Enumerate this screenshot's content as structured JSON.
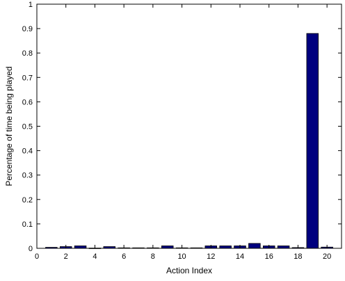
{
  "chart_data": {
    "type": "bar",
    "title": "",
    "xlabel": "Action Index",
    "ylabel": "Percentage of time being played",
    "xlim": [
      0,
      21
    ],
    "ylim": [
      0,
      1
    ],
    "xticks": [
      0,
      2,
      4,
      6,
      8,
      10,
      12,
      14,
      16,
      18,
      20
    ],
    "yticks": [
      0,
      0.1,
      0.2,
      0.3,
      0.4,
      0.5,
      0.6,
      0.7,
      0.8,
      0.9,
      1
    ],
    "grid": false,
    "bar_color": "#00007f",
    "categories": [
      1,
      2,
      3,
      4,
      5,
      6,
      7,
      8,
      9,
      10,
      11,
      12,
      13,
      14,
      15,
      16,
      17,
      18,
      19,
      20
    ],
    "values": [
      0.004,
      0.007,
      0.01,
      0.001,
      0.007,
      0.002,
      0.002,
      0.002,
      0.01,
      0.002,
      0.002,
      0.01,
      0.01,
      0.01,
      0.02,
      0.01,
      0.01,
      0.003,
      0.88,
      0.005
    ]
  }
}
